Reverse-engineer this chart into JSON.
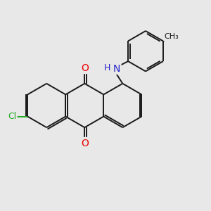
{
  "background_color": "#e8e8e8",
  "bond_color": "#1a1a1a",
  "bond_width": 1.4,
  "atom_colors": {
    "O": "#ee0000",
    "N": "#2222cc",
    "Cl": "#22aa22",
    "H": "#2222cc",
    "C": "#1a1a1a",
    "CH3": "#1a1a1a"
  },
  "font_size": 9
}
